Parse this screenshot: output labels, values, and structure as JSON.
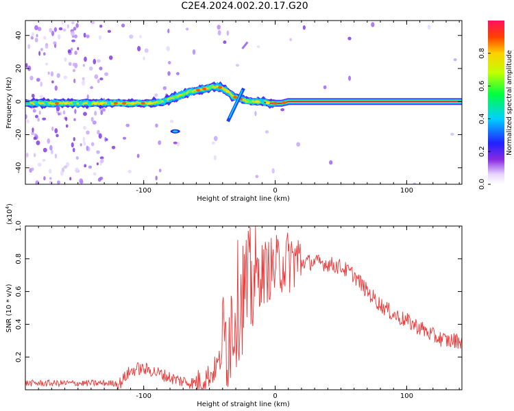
{
  "title": "C2E4.2024.002.20.17.G20",
  "chart_data": [
    {
      "type": "heatmap",
      "xlabel": "Height of straight line (km)",
      "ylabel": "Frequency (Hz)",
      "xlim": [
        -190,
        142
      ],
      "ylim": [
        -50,
        49
      ],
      "x_ticks": [
        -100,
        0,
        100
      ],
      "y_ticks": [
        -40,
        -20,
        0,
        20,
        40
      ],
      "colorbar": {
        "label": "Normalized spectral amplitude",
        "range": [
          0,
          1
        ],
        "ticks": [
          "0.0",
          "0.2",
          "0.4",
          "0.6",
          "0.8"
        ]
      },
      "ridge": {
        "x": [
          -190,
          -170,
          -150,
          -130,
          -110,
          -95,
          -85,
          -75,
          -65,
          -58,
          -52,
          -48,
          -44,
          -40,
          -36,
          -32,
          -28,
          -24,
          -20,
          -15,
          -10,
          -5,
          0,
          5,
          10,
          20,
          40,
          60,
          80,
          100,
          120,
          142
        ],
        "y": [
          -1,
          -1,
          -1,
          -1,
          -1,
          -1,
          0,
          3,
          6,
          7,
          8,
          9,
          9,
          8,
          6,
          3,
          2,
          1,
          0,
          0,
          0,
          -1,
          -1,
          -1,
          0,
          0,
          0,
          0,
          0,
          0,
          0,
          0
        ]
      }
    },
    {
      "type": "line",
      "xlabel": "Height of straight line (km)",
      "ylabel": "SNR (10 * v/v)",
      "y_multiplier": "(x10",
      "y_multiplier_exp": "4",
      "y_multiplier_close": ")",
      "xlim": [
        -190,
        142
      ],
      "ylim": [
        0,
        1.0
      ],
      "x_ticks": [
        -100,
        0,
        100
      ],
      "y_ticks": [
        0.2,
        0.4,
        0.6,
        0.8,
        1.0
      ],
      "series": [
        {
          "color": "#ee3333",
          "x": [
            -190,
            -160,
            -130,
            -118,
            -112,
            -105,
            -95,
            -85,
            -75,
            -62,
            -55,
            -48,
            -42,
            -38,
            -32,
            -28,
            -24,
            -20,
            -16,
            -12,
            -8,
            -4,
            0,
            5,
            10,
            15,
            20,
            30,
            40,
            50,
            60,
            70,
            80,
            90,
            100,
            110,
            120,
            130,
            142
          ],
          "y": [
            0.04,
            0.04,
            0.04,
            0.04,
            0.1,
            0.13,
            0.12,
            0.09,
            0.06,
            0.04,
            0.06,
            0.1,
            0.18,
            0.3,
            0.45,
            0.55,
            0.6,
            0.6,
            0.68,
            0.7,
            0.72,
            0.74,
            0.74,
            0.78,
            0.78,
            0.8,
            0.78,
            0.78,
            0.77,
            0.75,
            0.7,
            0.6,
            0.52,
            0.46,
            0.42,
            0.38,
            0.33,
            0.3,
            0.3
          ]
        }
      ]
    }
  ]
}
